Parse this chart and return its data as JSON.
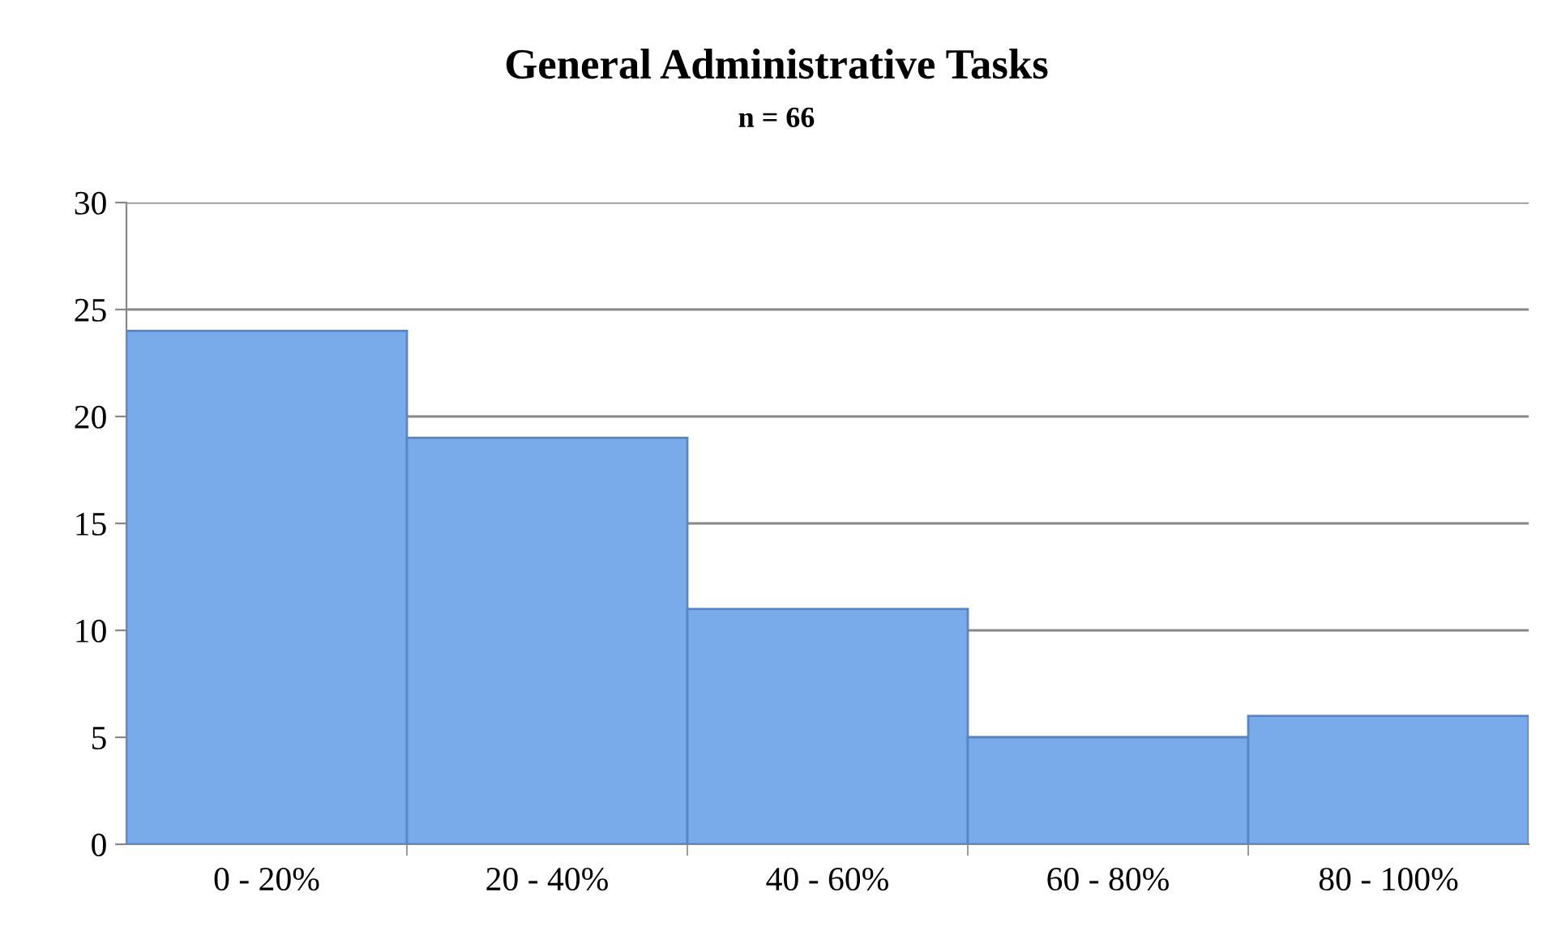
{
  "chart_data": {
    "type": "bar",
    "title": "General Administrative Tasks",
    "subtitle": "n = 66",
    "categories": [
      "0 - 20%",
      "20 - 40%",
      "40 - 60%",
      "60 - 80%",
      "80 - 100%"
    ],
    "values": [
      24,
      19,
      11,
      5,
      6
    ],
    "color": "#79aaea",
    "ylim": [
      0,
      30
    ],
    "yticks": [
      0,
      5,
      10,
      15,
      20,
      25,
      30
    ],
    "grid": "y",
    "legend": false
  }
}
